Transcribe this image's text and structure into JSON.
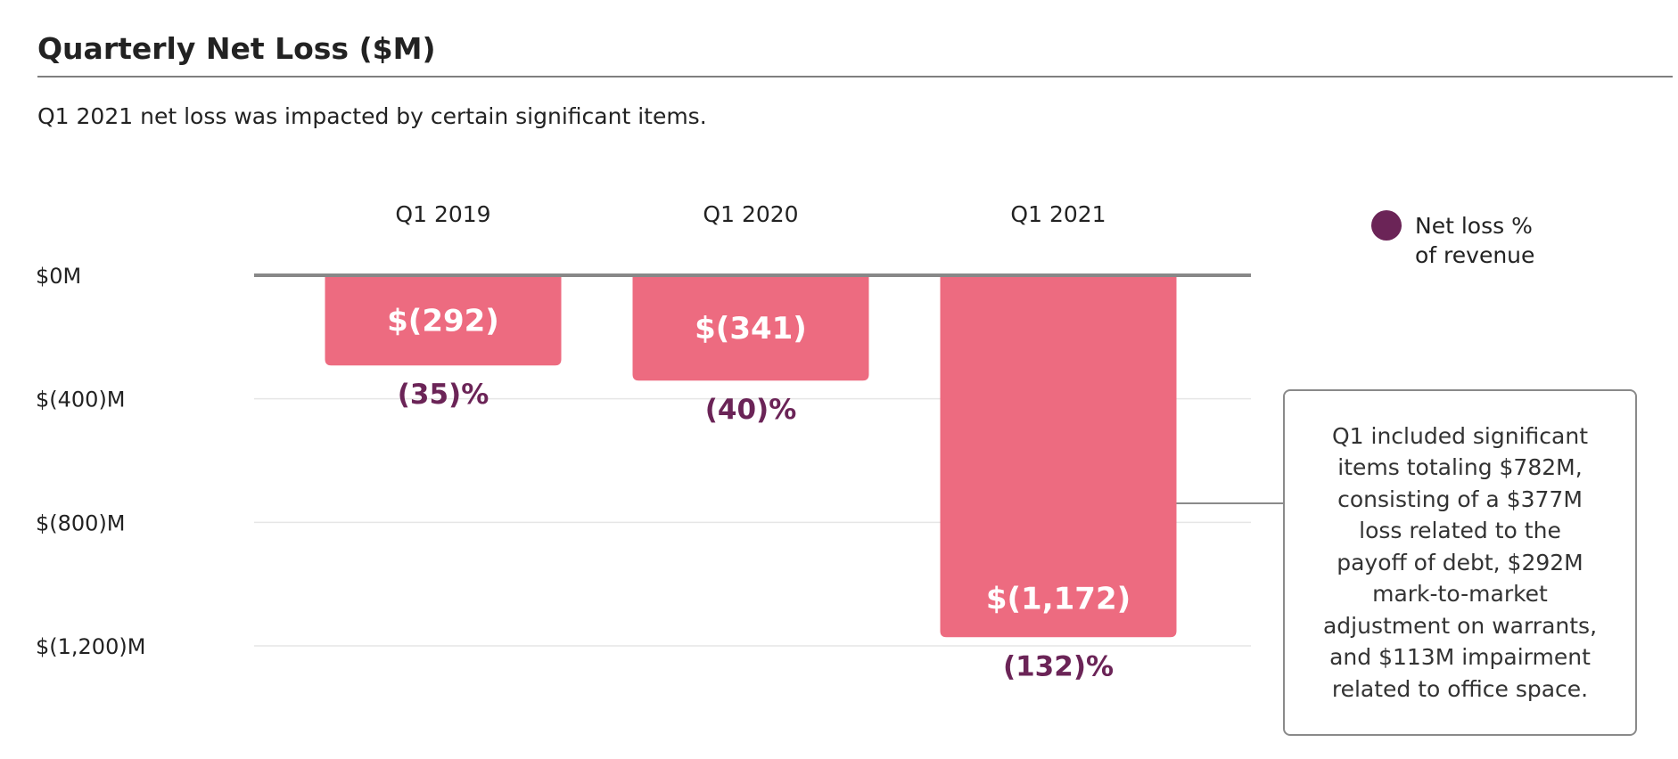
{
  "header": {
    "title": "Quarterly Net Loss ($M)",
    "subtitle": "Q1 2021 net loss was impacted by certain significant items."
  },
  "colors": {
    "bar": "#ed6b80",
    "percent_text": "#6b2457",
    "legend_marker": "#6b2457",
    "baseline": "#888888",
    "grid": "#e6e6e6"
  },
  "chart_data": {
    "type": "bar",
    "orientation": "vertical-downward",
    "title": "Quarterly Net Loss ($M)",
    "subtitle": "Q1 2021 net loss was impacted by certain significant items.",
    "categories": [
      "Q1 2019",
      "Q1 2020",
      "Q1 2021"
    ],
    "series": [
      {
        "name": "Net loss",
        "values": [
          -292,
          -341,
          -1172
        ],
        "labels": [
          "$(292)",
          "$(341)",
          "$(1,172)"
        ]
      },
      {
        "name": "Net loss % of revenue",
        "values": [
          -35,
          -40,
          -132
        ],
        "labels": [
          "(35)%",
          "(40)%",
          "(132)%"
        ]
      }
    ],
    "yticks": [
      {
        "value": 0,
        "label": "$0M"
      },
      {
        "value": -400,
        "label": "$(400)M"
      },
      {
        "value": -800,
        "label": "$(800)M"
      },
      {
        "value": -1200,
        "label": "$(1,200)M"
      }
    ],
    "ylim": [
      -1200,
      0
    ],
    "xlabel": "",
    "ylabel": "",
    "grid": true,
    "legend": {
      "placement": "top-right",
      "lines": [
        "Net loss %",
        "of revenue"
      ]
    },
    "annotation": {
      "target_category": "Q1 2021",
      "lines": [
        "Q1 included significant",
        "items totaling $782M,",
        "consisting of a $377M",
        "loss related to the",
        "payoff of debt, $292M",
        "mark-to-market",
        "adjustment on warrants,",
        "and $113M impairment",
        "related to office space."
      ]
    }
  }
}
